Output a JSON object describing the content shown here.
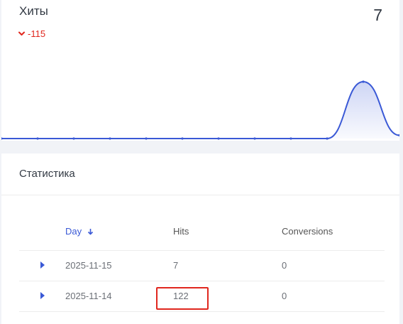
{
  "hits_card": {
    "title": "Хиты",
    "count": "7",
    "delta": "-115",
    "delta_color": "#e0271e",
    "line_color": "#3a59d6",
    "delta_icon": "chevron-down-icon"
  },
  "chart_data": {
    "type": "area",
    "points": [
      0,
      0,
      0,
      0,
      0,
      0,
      0,
      0,
      0,
      0,
      122,
      7
    ],
    "peak_value": 122
  },
  "stats_card": {
    "title": "Статистика",
    "columns": {
      "day": "Day",
      "hits": "Hits",
      "conversions": "Conversions"
    },
    "sort_icon": "arrow-down-icon",
    "expand_icon": "caret-right-icon",
    "rows": [
      {
        "day": "2025-11-15",
        "hits": "7",
        "conversions": "0"
      },
      {
        "day": "2025-11-14",
        "hits": "122",
        "conversions": "0"
      }
    ]
  }
}
